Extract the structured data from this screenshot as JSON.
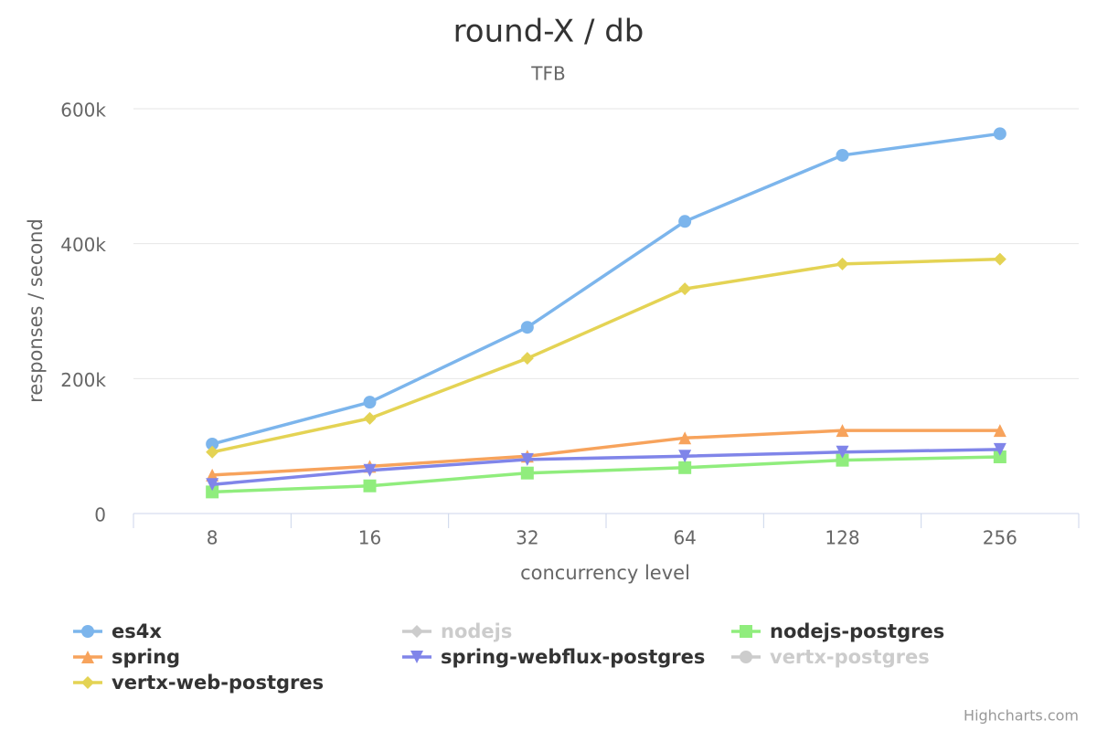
{
  "chart_data": {
    "type": "line",
    "title": "round-X / db",
    "subtitle": "TFB",
    "x_label": "concurrency level",
    "y_label": "responses / second",
    "credits": "Highcharts.com",
    "categories": [
      "8",
      "16",
      "32",
      "64",
      "128",
      "256"
    ],
    "ylim": [
      0,
      600000
    ],
    "yticks": [
      0,
      {
        "value": 200000,
        "label": "200k"
      },
      {
        "value": 400000,
        "label": "400k"
      },
      {
        "value": 600000,
        "label": "600k"
      }
    ],
    "grid": true,
    "legend": "bottom",
    "series": [
      {
        "name": "es4x",
        "color": "#7cb5ec",
        "marker": "circle",
        "visible": true,
        "values": [
          103000,
          165000,
          276000,
          433000,
          531000,
          563000
        ]
      },
      {
        "name": "nodejs",
        "color": "#434348",
        "marker": "diamond",
        "visible": false,
        "values": [
          null,
          null,
          null,
          null,
          null,
          null
        ]
      },
      {
        "name": "nodejs-postgres",
        "color": "#90ed7d",
        "marker": "square",
        "visible": true,
        "values": [
          32000,
          41000,
          60000,
          68000,
          79000,
          84000
        ]
      },
      {
        "name": "spring",
        "color": "#f7a35c",
        "marker": "triangle",
        "visible": true,
        "values": [
          57000,
          70000,
          85000,
          112000,
          123000,
          123000
        ]
      },
      {
        "name": "spring-webflux-postgres",
        "color": "#8085e9",
        "marker": "triangle-down",
        "visible": true,
        "values": [
          43000,
          64000,
          80000,
          85000,
          91000,
          95000
        ]
      },
      {
        "name": "vertx-postgres",
        "color": "#f15c80",
        "marker": "circle",
        "visible": false,
        "values": [
          null,
          null,
          null,
          null,
          null,
          null
        ]
      },
      {
        "name": "vertx-web-postgres",
        "color": "#e4d354",
        "marker": "diamond",
        "visible": true,
        "values": [
          91000,
          141000,
          230000,
          333000,
          370000,
          377000
        ]
      }
    ]
  }
}
